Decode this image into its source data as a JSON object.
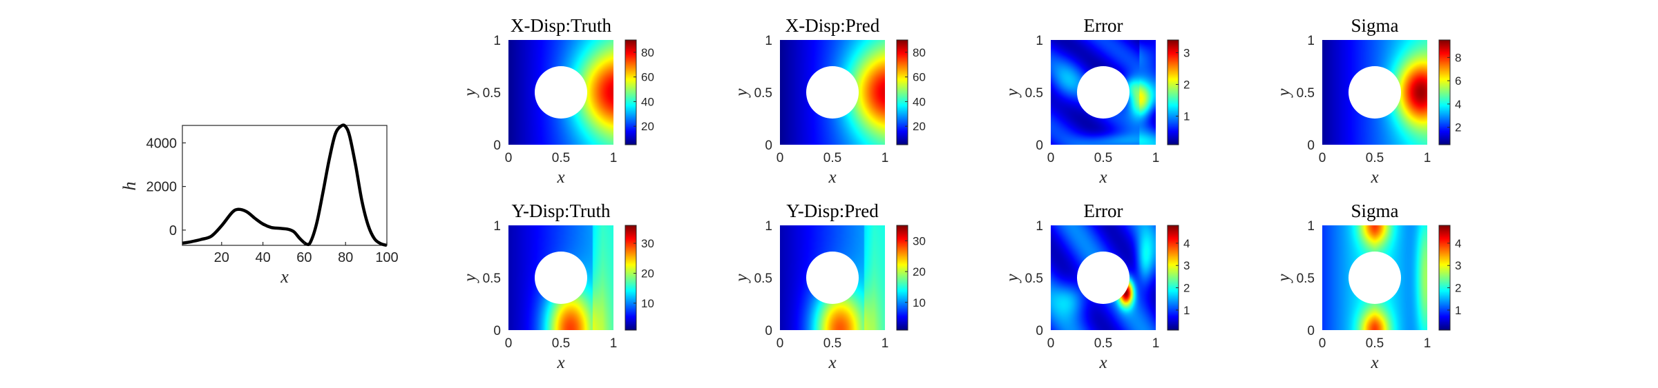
{
  "chart_data": [
    {
      "type": "line",
      "title": "",
      "xlabel": "x",
      "ylabel": "h",
      "xlim": [
        1,
        100
      ],
      "ylim": [
        -700,
        4800
      ],
      "xticks": [
        20,
        40,
        60,
        80,
        100
      ],
      "yticks": [
        0,
        2000,
        4000
      ],
      "grid": false,
      "x": [
        1,
        5,
        10,
        15,
        20,
        25,
        28,
        32,
        36,
        40,
        44,
        48,
        52,
        55,
        58,
        61,
        63,
        66,
        69,
        72,
        75,
        78,
        80,
        82,
        85,
        88,
        91,
        94,
        97,
        100
      ],
      "values": [
        -600,
        -540,
        -430,
        -280,
        200,
        800,
        950,
        850,
        550,
        280,
        120,
        80,
        40,
        -80,
        -400,
        -640,
        -550,
        300,
        1700,
        3200,
        4400,
        4780,
        4750,
        4300,
        2900,
        1300,
        200,
        -400,
        -620,
        -700
      ]
    },
    {
      "type": "heatmap",
      "title": "X-Disp:Truth",
      "xlabel": "x",
      "ylabel": "y",
      "xlim": [
        0,
        1
      ],
      "ylim": [
        0,
        1
      ],
      "xticks": [
        "0",
        "0.5",
        "1"
      ],
      "yticks": [
        "0",
        "0.5",
        "1"
      ],
      "colormap": "jet",
      "colorbar_ticks": [
        "20",
        "40",
        "60",
        "80"
      ],
      "colorbar_range": [
        5,
        90
      ],
      "hole": {
        "cx": 0.5,
        "cy": 0.5,
        "r": 0.25
      }
    },
    {
      "type": "heatmap",
      "title": "X-Disp:Pred",
      "xlabel": "x",
      "ylabel": "y",
      "xlim": [
        0,
        1
      ],
      "ylim": [
        0,
        1
      ],
      "xticks": [
        "0",
        "0.5",
        "1"
      ],
      "yticks": [
        "0",
        "0.5",
        "1"
      ],
      "colormap": "jet",
      "colorbar_ticks": [
        "20",
        "40",
        "60",
        "80"
      ],
      "colorbar_range": [
        5,
        90
      ],
      "hole": {
        "cx": 0.5,
        "cy": 0.5,
        "r": 0.25
      }
    },
    {
      "type": "heatmap",
      "title": "Error",
      "xlabel": "x",
      "ylabel": "y",
      "xlim": [
        0,
        1
      ],
      "ylim": [
        0,
        1
      ],
      "xticks": [
        "0",
        "0.5",
        "1"
      ],
      "yticks": [
        "0",
        "0.5",
        "1"
      ],
      "colormap": "jet",
      "colorbar_ticks": [
        "1",
        "2",
        "3"
      ],
      "colorbar_range": [
        0.1,
        3.4
      ],
      "hole": {
        "cx": 0.5,
        "cy": 0.5,
        "r": 0.25
      }
    },
    {
      "type": "heatmap",
      "title": "Sigma",
      "xlabel": "x",
      "ylabel": "y",
      "xlim": [
        0,
        1
      ],
      "ylim": [
        0,
        1
      ],
      "xticks": [
        "0",
        "0.5",
        "1"
      ],
      "yticks": [
        "0",
        "0.5",
        "1"
      ],
      "colormap": "jet",
      "colorbar_ticks": [
        "2",
        "4",
        "6",
        "8"
      ],
      "colorbar_range": [
        0.5,
        9.5
      ],
      "hole": {
        "cx": 0.5,
        "cy": 0.5,
        "r": 0.25
      }
    },
    {
      "type": "heatmap",
      "title": "Y-Disp:Truth",
      "xlabel": "x",
      "ylabel": "y",
      "xlim": [
        0,
        1
      ],
      "ylim": [
        0,
        1
      ],
      "xticks": [
        "0",
        "0.5",
        "1"
      ],
      "yticks": [
        "0",
        "0.5",
        "1"
      ],
      "colormap": "jet",
      "colorbar_ticks": [
        "10",
        "20",
        "30"
      ],
      "colorbar_range": [
        1,
        36
      ],
      "hole": {
        "cx": 0.5,
        "cy": 0.5,
        "r": 0.25
      }
    },
    {
      "type": "heatmap",
      "title": "Y-Disp:Pred",
      "xlabel": "x",
      "ylabel": "y",
      "xlim": [
        0,
        1
      ],
      "ylim": [
        0,
        1
      ],
      "xticks": [
        "0",
        "0.5",
        "1"
      ],
      "yticks": [
        "0",
        "0.5",
        "1"
      ],
      "colormap": "jet",
      "colorbar_ticks": [
        "10",
        "20",
        "30"
      ],
      "colorbar_range": [
        1,
        35
      ],
      "hole": {
        "cx": 0.5,
        "cy": 0.5,
        "r": 0.25
      }
    },
    {
      "type": "heatmap",
      "title": "Error",
      "xlabel": "x",
      "ylabel": "y",
      "xlim": [
        0,
        1
      ],
      "ylim": [
        0,
        1
      ],
      "xticks": [
        "0",
        "0.5",
        "1"
      ],
      "yticks": [
        "0",
        "0.5",
        "1"
      ],
      "colormap": "jet",
      "colorbar_ticks": [
        "1",
        "2",
        "3",
        "4"
      ],
      "colorbar_range": [
        0.1,
        4.8
      ],
      "hole": {
        "cx": 0.5,
        "cy": 0.5,
        "r": 0.25
      }
    },
    {
      "type": "heatmap",
      "title": "Sigma",
      "xlabel": "x",
      "ylabel": "y",
      "xlim": [
        0,
        1
      ],
      "ylim": [
        0,
        1
      ],
      "xticks": [
        "0",
        "0.5",
        "1"
      ],
      "yticks": [
        "0",
        "0.5",
        "1"
      ],
      "colormap": "jet",
      "colorbar_ticks": [
        "1",
        "2",
        "3",
        "4"
      ],
      "colorbar_range": [
        0.1,
        4.8
      ],
      "hole": {
        "cx": 0.5,
        "cy": 0.5,
        "r": 0.25
      }
    }
  ]
}
